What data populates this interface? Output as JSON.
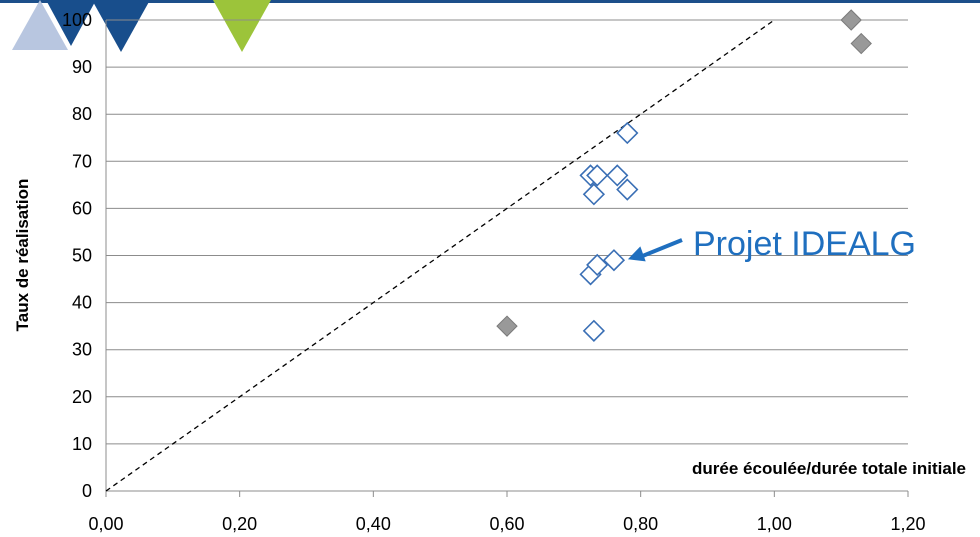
{
  "chart_data": {
    "type": "scatter",
    "title": "",
    "xlabel": "durée écoulée/durée totale initiale",
    "ylabel": "Taux de réalisation",
    "xlim": [
      0,
      1.2
    ],
    "ylim": [
      0,
      100
    ],
    "x_ticks": [
      "0,00",
      "0,20",
      "0,40",
      "0,60",
      "0,80",
      "1,00",
      "1,20"
    ],
    "y_ticks": [
      "0",
      "10",
      "20",
      "30",
      "40",
      "50",
      "60",
      "70",
      "80",
      "90",
      "100"
    ],
    "grid": "horizontal",
    "series": [
      {
        "style": "open-diamond",
        "color": "#3a6fb5",
        "points": [
          {
            "x": 0.73,
            "y": 34
          },
          {
            "x": 0.725,
            "y": 46
          },
          {
            "x": 0.735,
            "y": 48
          },
          {
            "x": 0.76,
            "y": 49
          },
          {
            "x": 0.73,
            "y": 63
          },
          {
            "x": 0.725,
            "y": 67
          },
          {
            "x": 0.735,
            "y": 67
          },
          {
            "x": 0.765,
            "y": 67
          },
          {
            "x": 0.78,
            "y": 64
          },
          {
            "x": 0.78,
            "y": 76
          }
        ]
      },
      {
        "style": "filled-diamond",
        "color": "#999999",
        "points": [
          {
            "x": 0.6,
            "y": 35
          },
          {
            "x": 1.115,
            "y": 100
          },
          {
            "x": 1.13,
            "y": 95
          }
        ]
      }
    ],
    "reference_line": {
      "from": {
        "x": 0,
        "y": 0
      },
      "to": {
        "x": 1.0,
        "y": 100
      },
      "style": "dashed"
    },
    "annotation": {
      "text": "Projet IDEALG",
      "points_to": {
        "x": 0.76,
        "y": 49
      }
    }
  },
  "header_decoration": {
    "top_bar_color": "#1c4f8a",
    "shapes": [
      {
        "name": "light-blue-triangle",
        "color": "#b8c6e0"
      },
      {
        "name": "navy-triangle",
        "color": "#184e8c"
      },
      {
        "name": "navy-triangle-2",
        "color": "#184e8c"
      },
      {
        "name": "green-triangle",
        "color": "#9cc43a"
      }
    ]
  }
}
